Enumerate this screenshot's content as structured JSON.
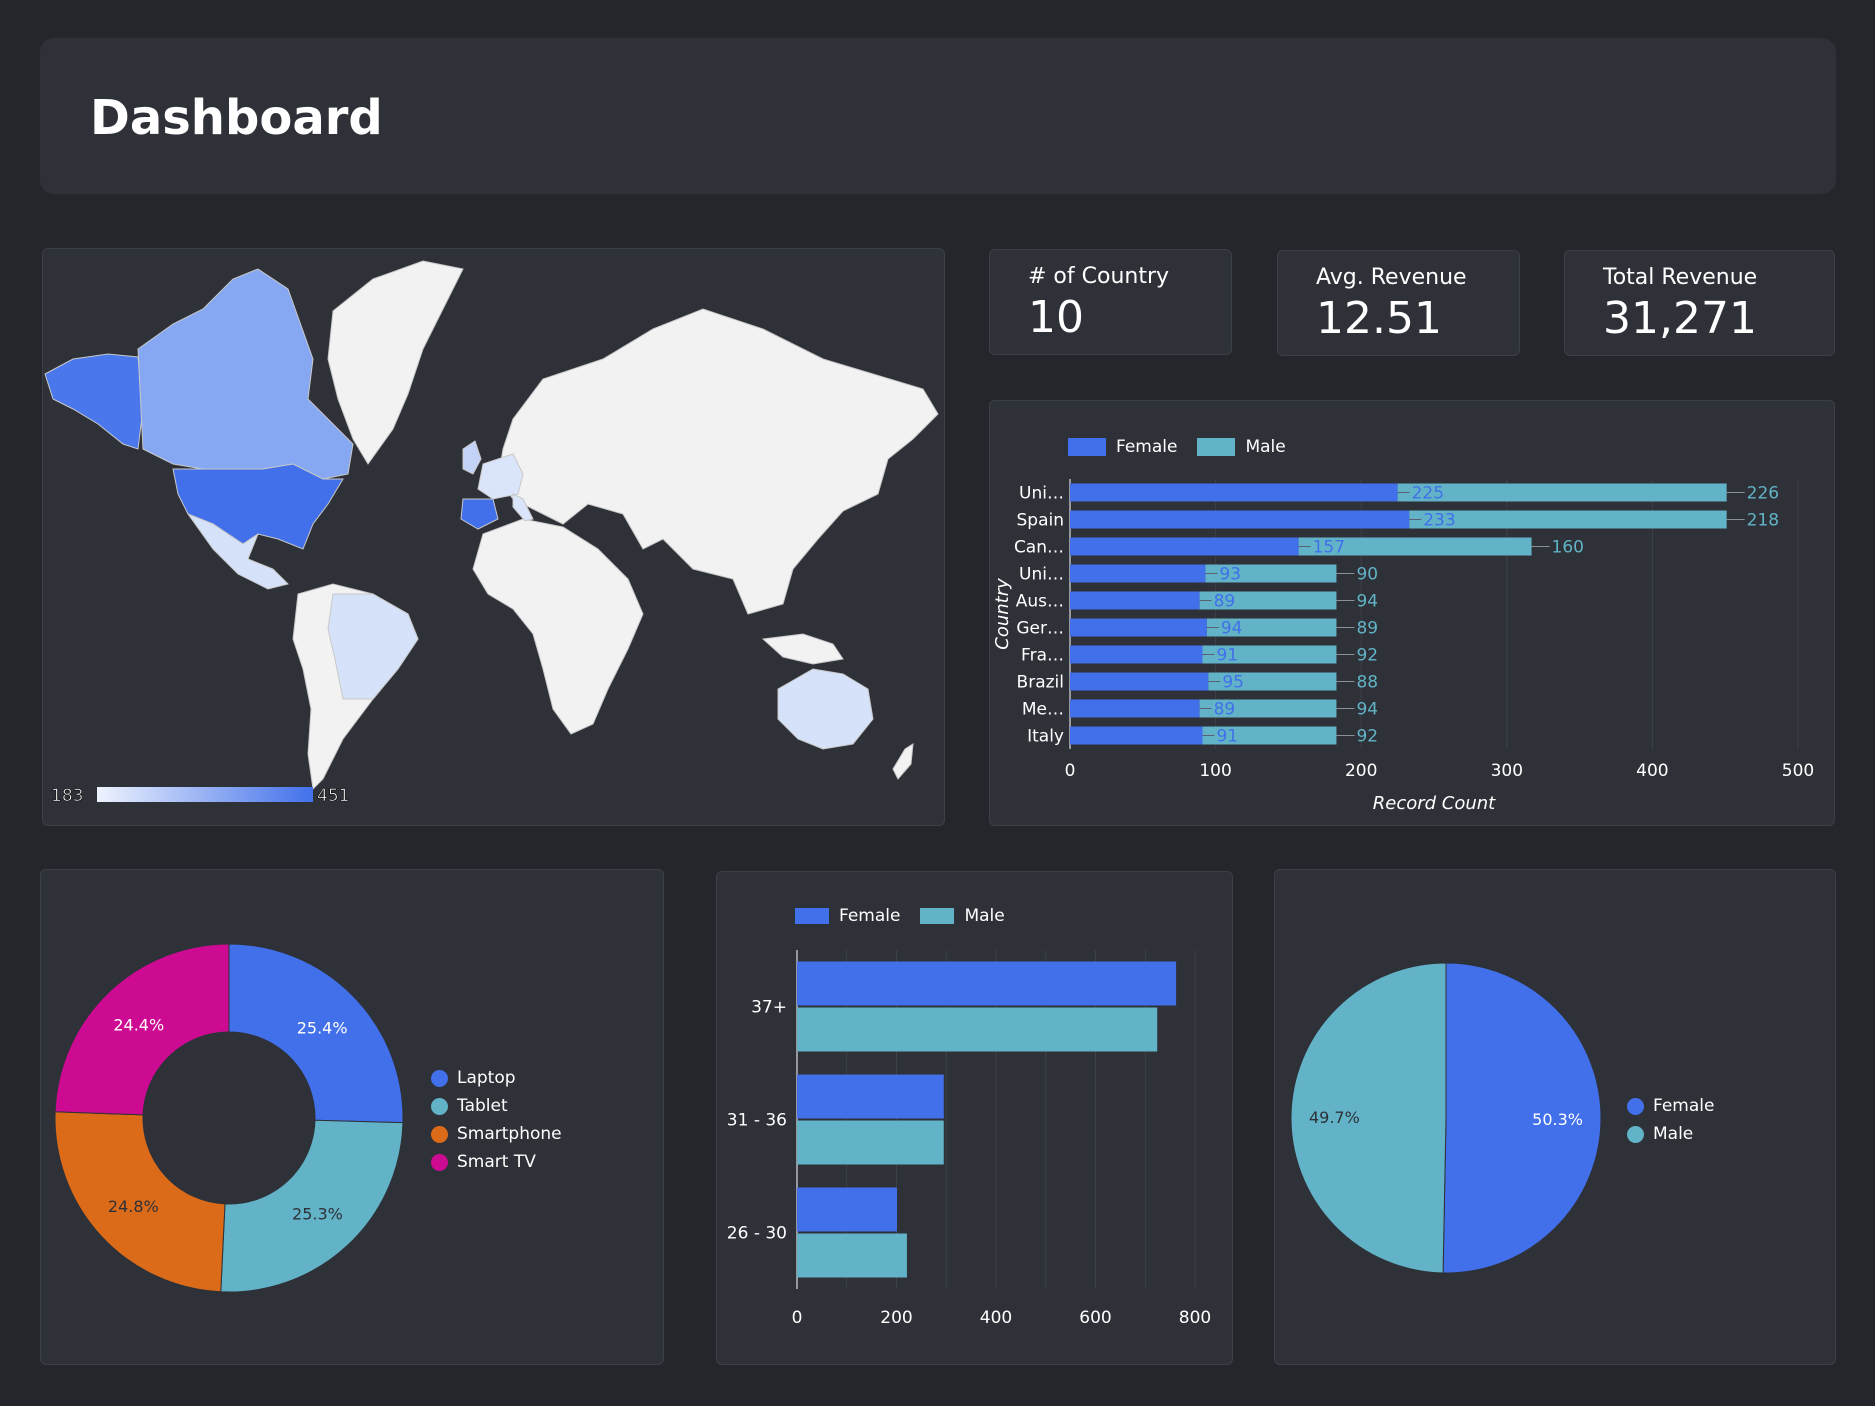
{
  "header": {
    "title": "Dashboard"
  },
  "kpis": {
    "country": {
      "label": "# of Country",
      "value": "10"
    },
    "avg_revenue": {
      "label": "Avg. Revenue",
      "value": "12.51"
    },
    "total_revenue": {
      "label": "Total Revenue",
      "value": "31,271"
    }
  },
  "colors": {
    "female": "#4170ea",
    "male": "#62b3c7",
    "smartphone": "#dc6b19",
    "smart_tv": "#cc0b92",
    "panel": "#2e3138",
    "background": "#24262b"
  },
  "chart_data": [
    {
      "type": "map",
      "legend_min": "183",
      "legend_max": "451",
      "scale": "light-blue to blue",
      "highlighted_countries": [
        "United States",
        "Spain",
        "Canada",
        "United Kingdom",
        "Australia",
        "Germany",
        "France",
        "Brazil",
        "Mexico",
        "Italy"
      ]
    },
    {
      "type": "bar",
      "orientation": "horizontal",
      "stacked": true,
      "categories": [
        "Uni…",
        "Spain",
        "Can…",
        "Uni…",
        "Aus…",
        "Ger…",
        "Fra…",
        "Brazil",
        "Me…",
        "Italy"
      ],
      "series": [
        {
          "name": "Female",
          "values": [
            225,
            233,
            157,
            93,
            89,
            94,
            91,
            95,
            89,
            91
          ]
        },
        {
          "name": "Male",
          "values": [
            226,
            218,
            160,
            90,
            94,
            89,
            92,
            88,
            94,
            92
          ]
        }
      ],
      "xlabel": "Record Count",
      "ylabel": "Country",
      "xlim": [
        0,
        500
      ],
      "xticks": [
        "0",
        "100",
        "200",
        "300",
        "400",
        "500"
      ],
      "legend": "top-left"
    },
    {
      "type": "pie",
      "donut": true,
      "labels": [
        "Laptop",
        "Tablet",
        "Smartphone",
        "Smart TV"
      ],
      "values": [
        25.4,
        25.3,
        24.8,
        24.4
      ],
      "value_labels": [
        "25.4%",
        "25.3%",
        "24.8%",
        "24.4%"
      ],
      "legend": "right"
    },
    {
      "type": "bar",
      "orientation": "horizontal",
      "stacked": false,
      "categories": [
        "37+",
        "31 - 36",
        "26 - 30"
      ],
      "series": [
        {
          "name": "Female",
          "values": [
            762,
            295,
            201
          ]
        },
        {
          "name": "Male",
          "values": [
            724,
            295,
            221
          ]
        }
      ],
      "xlim": [
        0,
        800
      ],
      "xticks": [
        "0",
        "200",
        "400",
        "600",
        "800"
      ],
      "legend": "top-left"
    },
    {
      "type": "pie",
      "donut": false,
      "labels": [
        "Female",
        "Male"
      ],
      "values": [
        50.3,
        49.7
      ],
      "value_labels": [
        "50.3%",
        "49.7%"
      ],
      "legend": "right"
    }
  ]
}
